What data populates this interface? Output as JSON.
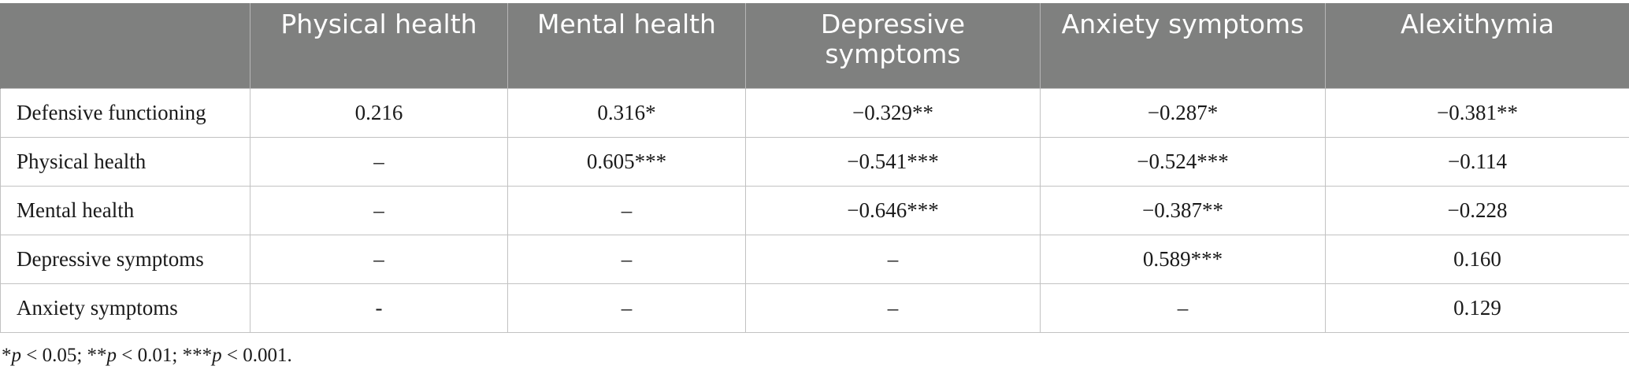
{
  "table": {
    "headers": [
      "",
      "Physical health",
      "Mental health",
      "Depressive symptoms",
      "Anxiety symptoms",
      "Alexithymia"
    ],
    "rows": [
      {
        "label": "Defensive functioning",
        "cells": [
          "0.216",
          "0.316*",
          "−0.329**",
          "−0.287*",
          "−0.381**"
        ]
      },
      {
        "label": "Physical health",
        "cells": [
          "–",
          "0.605***",
          "−0.541***",
          "−0.524***",
          "−0.114"
        ]
      },
      {
        "label": "Mental health",
        "cells": [
          "–",
          "–",
          "−0.646***",
          "−0.387**",
          "−0.228"
        ]
      },
      {
        "label": "Depressive symptoms",
        "cells": [
          "–",
          "–",
          "–",
          "0.589***",
          "0.160"
        ]
      },
      {
        "label": "Anxiety symptoms",
        "cells": [
          "-",
          "–",
          "–",
          "–",
          "0.129"
        ]
      }
    ]
  },
  "footnote": {
    "parts": [
      {
        "text": "*",
        "italic": false
      },
      {
        "text": "p",
        "italic": true
      },
      {
        "text": " < 0.05; **",
        "italic": false
      },
      {
        "text": "p",
        "italic": true
      },
      {
        "text": " < 0.01; ***",
        "italic": false
      },
      {
        "text": "p",
        "italic": true
      },
      {
        "text": " < 0.001.",
        "italic": false
      }
    ]
  }
}
